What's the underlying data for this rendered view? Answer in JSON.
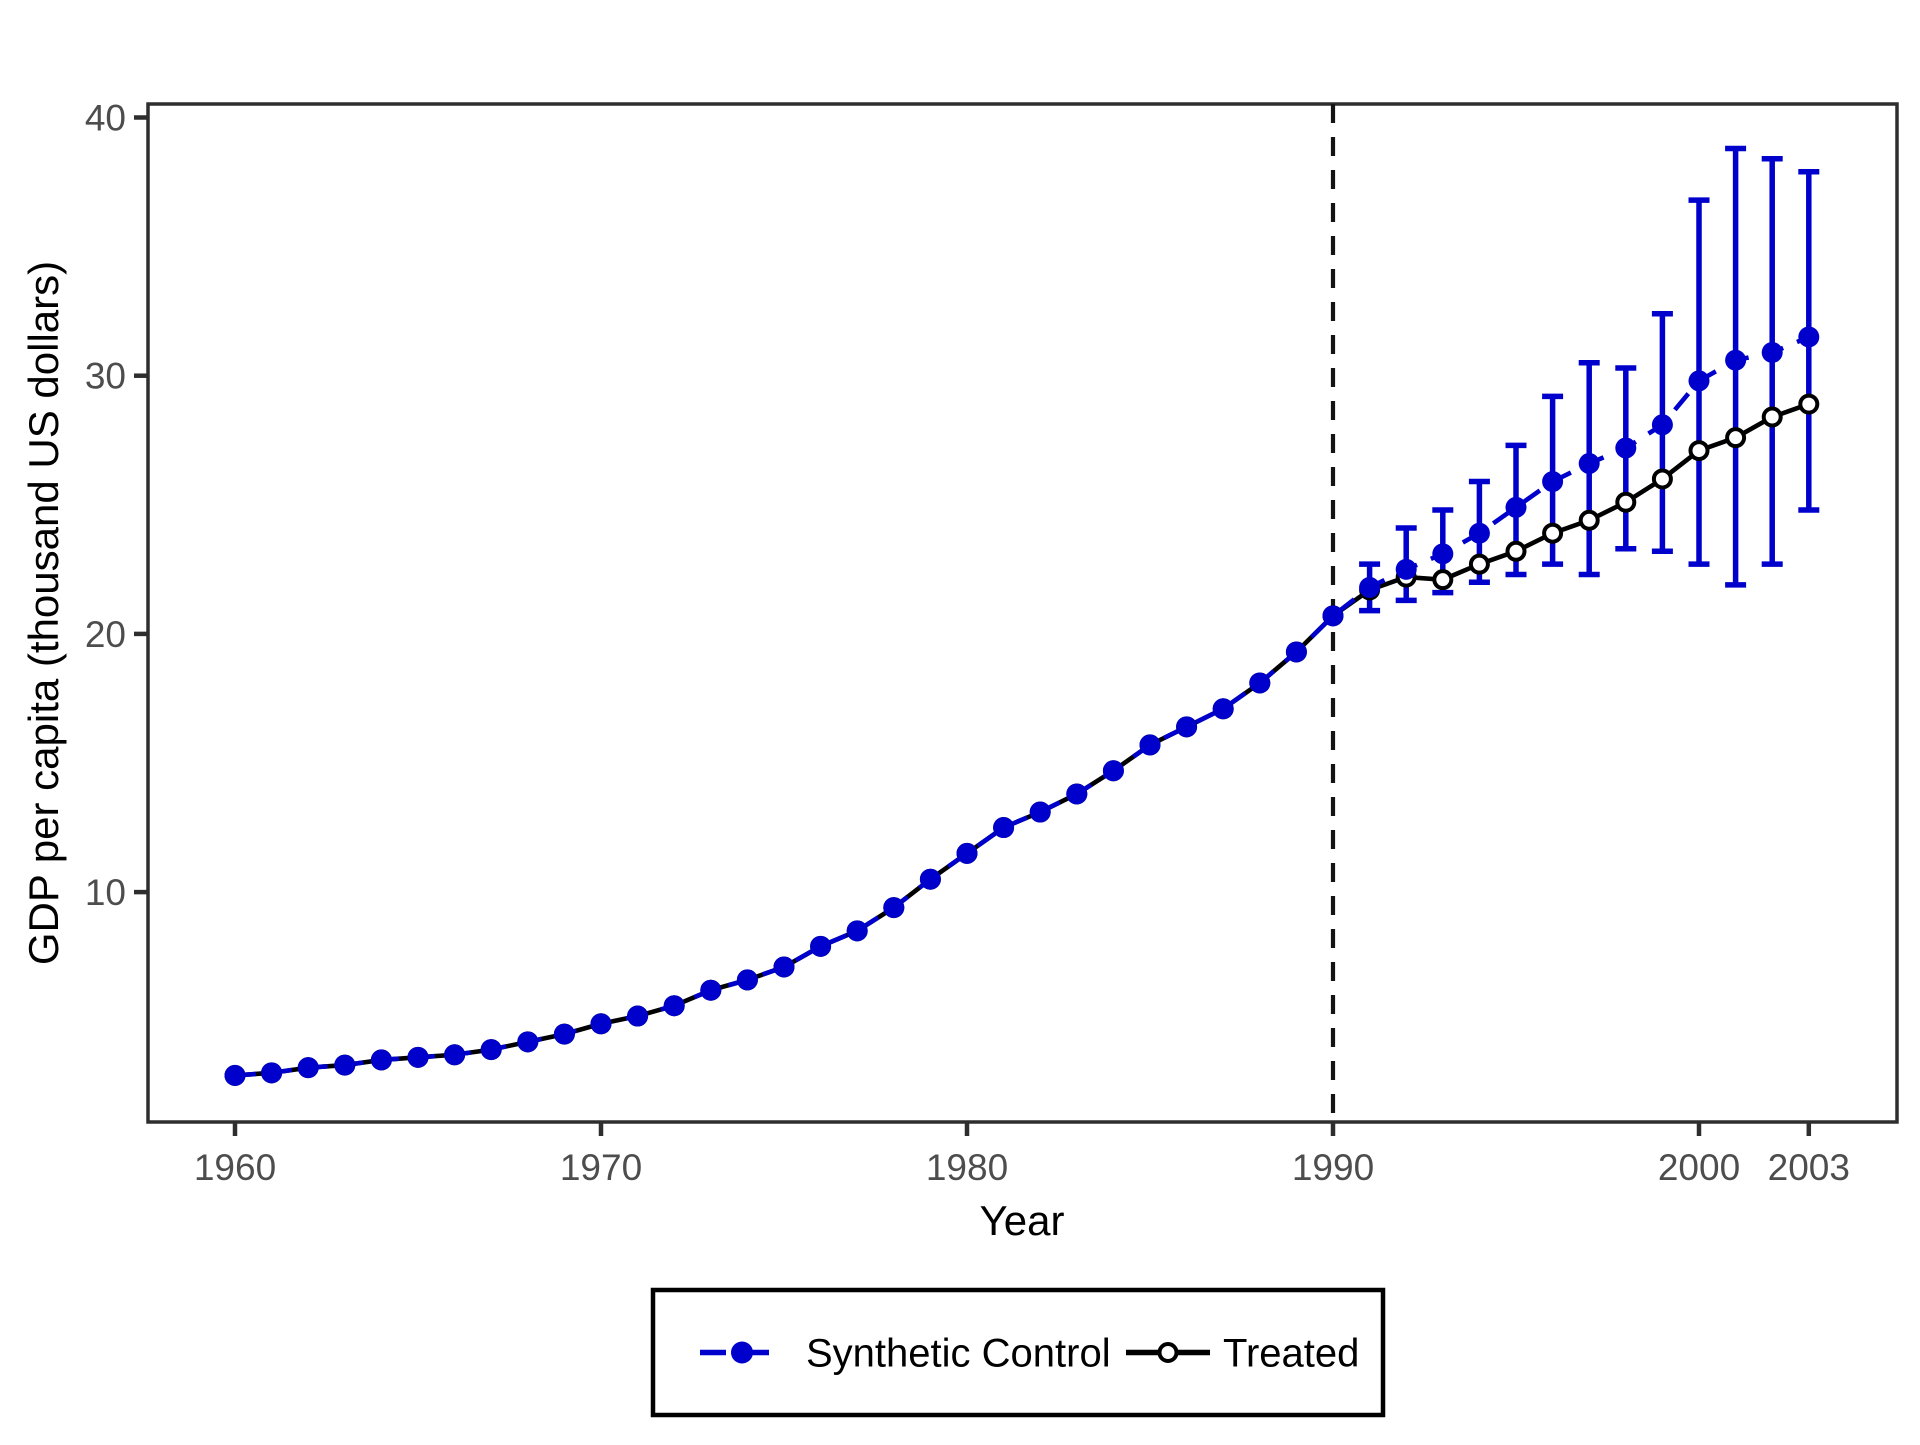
{
  "chart_data": {
    "type": "line",
    "title": "",
    "xlabel": "Year",
    "ylabel": "GDP per capita (thousand US dollars)",
    "x": [
      1960,
      1961,
      1962,
      1963,
      1964,
      1965,
      1966,
      1967,
      1968,
      1969,
      1970,
      1971,
      1972,
      1973,
      1974,
      1975,
      1976,
      1977,
      1978,
      1979,
      1980,
      1981,
      1982,
      1983,
      1984,
      1985,
      1986,
      1987,
      1988,
      1989,
      1990,
      1991,
      1992,
      1993,
      1994,
      1995,
      1996,
      1997,
      1998,
      1999,
      2000,
      2001,
      2002,
      2003
    ],
    "series": [
      {
        "name": "Synthetic Control",
        "color": "#0000CD",
        "marker": "filled-circle",
        "linetype": "dashed",
        "values": [
          2.9,
          3.0,
          3.2,
          3.3,
          3.5,
          3.6,
          3.7,
          3.9,
          4.2,
          4.5,
          4.9,
          5.2,
          5.6,
          6.2,
          6.6,
          7.1,
          7.9,
          8.5,
          9.4,
          10.5,
          11.5,
          12.5,
          13.1,
          13.8,
          14.7,
          15.7,
          16.4,
          17.1,
          18.1,
          19.3,
          20.7,
          21.8,
          22.5,
          23.1,
          23.9,
          24.9,
          25.9,
          26.6,
          27.2,
          28.1,
          29.8,
          30.6,
          30.9,
          31.5
        ]
      },
      {
        "name": "Treated",
        "color": "#000000",
        "marker": "open-circle",
        "linetype": "solid",
        "values": [
          2.9,
          3.0,
          3.2,
          3.3,
          3.5,
          3.6,
          3.7,
          3.9,
          4.2,
          4.5,
          4.9,
          5.2,
          5.6,
          6.2,
          6.6,
          7.1,
          7.9,
          8.5,
          9.4,
          10.5,
          11.5,
          12.5,
          13.1,
          13.8,
          14.7,
          15.7,
          16.4,
          17.1,
          18.1,
          19.3,
          20.7,
          21.7,
          22.2,
          22.1,
          22.7,
          23.2,
          23.9,
          24.4,
          25.1,
          26.0,
          27.1,
          27.6,
          28.4,
          28.9
        ]
      }
    ],
    "error_bars": {
      "series": "Synthetic Control",
      "color": "#0000CD",
      "years": [
        1991,
        1992,
        1993,
        1994,
        1995,
        1996,
        1997,
        1998,
        1999,
        2000,
        2001,
        2002,
        2003
      ],
      "low": [
        20.9,
        21.3,
        21.6,
        22.0,
        22.3,
        22.7,
        22.3,
        23.3,
        23.2,
        22.7,
        21.9,
        22.7,
        24.8
      ],
      "high": [
        22.7,
        24.1,
        24.8,
        25.9,
        27.3,
        29.2,
        30.5,
        30.3,
        32.4,
        36.8,
        38.8,
        38.4,
        37.9
      ]
    },
    "treatment_line": {
      "x": 1990,
      "style": "dashed",
      "color": "#141414"
    },
    "x_ticks": [
      "1960",
      "1970",
      "1980",
      "1990",
      "2000",
      "2003"
    ],
    "x_tick_values": [
      1960,
      1970,
      1980,
      1990,
      2000,
      2003
    ],
    "y_ticks": [
      "10",
      "20",
      "30",
      "40"
    ],
    "y_tick_values": [
      10,
      20,
      30,
      40
    ],
    "xlim": [
      1957.6,
      2005.4
    ],
    "ylim": [
      1.1,
      40.5
    ],
    "grid": false,
    "legend": {
      "position": "bottom",
      "items": [
        {
          "label": "Synthetic Control",
          "color": "#0000CD",
          "marker": "filled-circle",
          "linetype": "dashed"
        },
        {
          "label": "Treated",
          "color": "#000000",
          "marker": "open-circle",
          "linetype": "solid"
        }
      ]
    }
  },
  "colors": {
    "synthetic": "#0000CD",
    "treated": "#000000",
    "axis_text": "#4D4D4D",
    "axis_line": "#2E2E2E",
    "background": "#FFFFFF"
  }
}
